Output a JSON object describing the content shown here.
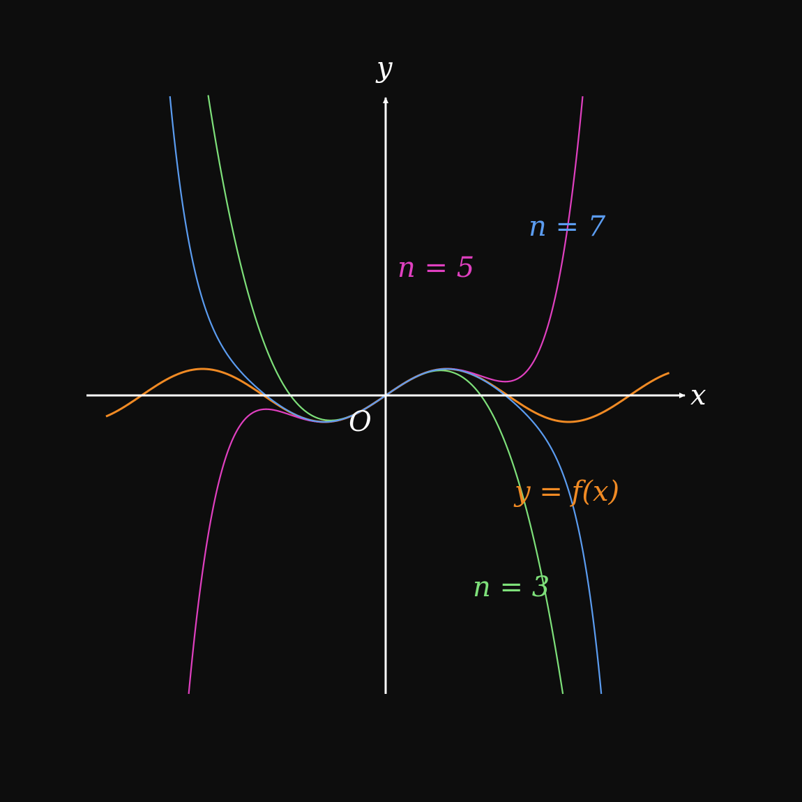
{
  "chart_data": {
    "type": "line",
    "title": "",
    "axes": {
      "x_label": "x",
      "y_label": "y",
      "origin_label": "O",
      "color": "#ffffff",
      "grid": false,
      "xlim": [
        -7.4,
        7.4
      ],
      "ylim": [
        -7.4,
        7.4
      ]
    },
    "function": "sin(x)",
    "series": [
      {
        "key": "f",
        "name": "y = f(x)",
        "color": "#f08a24",
        "kind": "sin",
        "domain": [
          -7.2,
          7.3
        ]
      },
      {
        "key": "n3",
        "name": "n = 3",
        "color": "#7ee07a",
        "kind": "taylor",
        "order": 3,
        "coeffs": [
          0,
          1,
          0,
          -0.16667
        ]
      },
      {
        "key": "n5",
        "name": "n = 5",
        "color": "#e040c0",
        "kind": "taylor",
        "order": 5,
        "coeffs": [
          0,
          1,
          0,
          -0.16667,
          0,
          0.0083333
        ]
      },
      {
        "key": "n7",
        "name": "n = 7",
        "color": "#5b9cf0",
        "kind": "taylor",
        "order": 7,
        "coeffs": [
          0,
          1,
          0,
          -0.16667,
          0,
          0.0083333,
          0,
          -0.00019841
        ]
      }
    ],
    "labels": [
      {
        "series": "n7",
        "text": "n = 7"
      },
      {
        "series": "n5",
        "text": "n = 5"
      },
      {
        "series": "f",
        "text": "y = f(x)"
      },
      {
        "series": "n3",
        "text": "n = 3"
      }
    ]
  }
}
